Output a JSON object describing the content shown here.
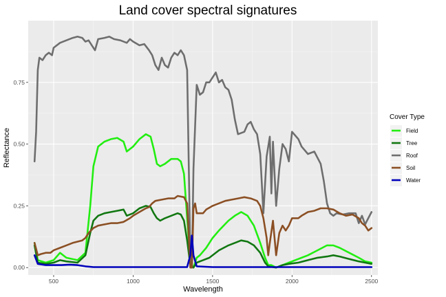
{
  "chart_data": {
    "type": "line",
    "title": "Land cover spectral signatures",
    "xlabel": "Wavelength",
    "ylabel": "Reflectance",
    "xlim": [
      340,
      2540
    ],
    "ylim": [
      -0.03,
      1.0
    ],
    "x_ticks": [
      500,
      1000,
      1500,
      2000,
      2500
    ],
    "x_tick_labels": [
      "500",
      "1000",
      "1500",
      "2000",
      "2500"
    ],
    "y_ticks": [
      0.0,
      0.25,
      0.5,
      0.75
    ],
    "y_tick_labels": [
      "0.00",
      "0.25",
      "0.50",
      "0.75"
    ],
    "grid": true,
    "legend": {
      "title": "Cover Type",
      "position": "right"
    },
    "series": [
      {
        "name": "Field",
        "color": "#22ee11",
        "points": [
          [
            380,
            0.1
          ],
          [
            400,
            0.03
          ],
          [
            450,
            0.02
          ],
          [
            500,
            0.03
          ],
          [
            540,
            0.06
          ],
          [
            580,
            0.04
          ],
          [
            650,
            0.03
          ],
          [
            700,
            0.06
          ],
          [
            730,
            0.25
          ],
          [
            750,
            0.41
          ],
          [
            780,
            0.49
          ],
          [
            820,
            0.51
          ],
          [
            860,
            0.52
          ],
          [
            900,
            0.525
          ],
          [
            940,
            0.51
          ],
          [
            960,
            0.47
          ],
          [
            1000,
            0.49
          ],
          [
            1040,
            0.52
          ],
          [
            1080,
            0.54
          ],
          [
            1110,
            0.53
          ],
          [
            1130,
            0.48
          ],
          [
            1150,
            0.42
          ],
          [
            1170,
            0.41
          ],
          [
            1200,
            0.42
          ],
          [
            1240,
            0.44
          ],
          [
            1280,
            0.44
          ],
          [
            1300,
            0.43
          ],
          [
            1320,
            0.38
          ],
          [
            1340,
            0.2
          ],
          [
            1360,
            0.02
          ],
          [
            1380,
            0.0
          ],
          [
            1400,
            0.04
          ],
          [
            1420,
            0.05
          ],
          [
            1460,
            0.08
          ],
          [
            1500,
            0.12
          ],
          [
            1540,
            0.15
          ],
          [
            1600,
            0.19
          ],
          [
            1640,
            0.21
          ],
          [
            1680,
            0.225
          ],
          [
            1720,
            0.21
          ],
          [
            1760,
            0.17
          ],
          [
            1800,
            0.1
          ],
          [
            1830,
            0.04
          ],
          [
            1850,
            0.01
          ],
          [
            1870,
            0.01
          ],
          [
            1900,
            0.0
          ],
          [
            1940,
            0.01
          ],
          [
            1980,
            0.02
          ],
          [
            2020,
            0.03
          ],
          [
            2060,
            0.04
          ],
          [
            2100,
            0.05
          ],
          [
            2160,
            0.07
          ],
          [
            2220,
            0.09
          ],
          [
            2260,
            0.09
          ],
          [
            2300,
            0.08
          ],
          [
            2360,
            0.06
          ],
          [
            2420,
            0.04
          ],
          [
            2460,
            0.025
          ],
          [
            2500,
            0.02
          ]
        ]
      },
      {
        "name": "Tree",
        "color": "#117711",
        "points": [
          [
            380,
            0.09
          ],
          [
            400,
            0.02
          ],
          [
            450,
            0.015
          ],
          [
            500,
            0.02
          ],
          [
            540,
            0.03
          ],
          [
            580,
            0.025
          ],
          [
            650,
            0.02
          ],
          [
            700,
            0.05
          ],
          [
            730,
            0.14
          ],
          [
            750,
            0.19
          ],
          [
            780,
            0.21
          ],
          [
            820,
            0.22
          ],
          [
            860,
            0.225
          ],
          [
            900,
            0.23
          ],
          [
            940,
            0.235
          ],
          [
            960,
            0.21
          ],
          [
            1000,
            0.22
          ],
          [
            1040,
            0.24
          ],
          [
            1080,
            0.25
          ],
          [
            1110,
            0.245
          ],
          [
            1130,
            0.22
          ],
          [
            1150,
            0.2
          ],
          [
            1170,
            0.19
          ],
          [
            1200,
            0.2
          ],
          [
            1240,
            0.21
          ],
          [
            1280,
            0.22
          ],
          [
            1300,
            0.215
          ],
          [
            1320,
            0.19
          ],
          [
            1340,
            0.11
          ],
          [
            1360,
            0.01
          ],
          [
            1380,
            0.0
          ],
          [
            1400,
            0.02
          ],
          [
            1440,
            0.03
          ],
          [
            1480,
            0.04
          ],
          [
            1540,
            0.07
          ],
          [
            1600,
            0.09
          ],
          [
            1640,
            0.1
          ],
          [
            1680,
            0.11
          ],
          [
            1720,
            0.105
          ],
          [
            1760,
            0.09
          ],
          [
            1800,
            0.06
          ],
          [
            1830,
            0.02
          ],
          [
            1850,
            0.005
          ],
          [
            1900,
            0.0
          ],
          [
            1940,
            0.01
          ],
          [
            1980,
            0.015
          ],
          [
            2040,
            0.02
          ],
          [
            2100,
            0.03
          ],
          [
            2160,
            0.04
          ],
          [
            2220,
            0.045
          ],
          [
            2260,
            0.05
          ],
          [
            2300,
            0.045
          ],
          [
            2360,
            0.035
          ],
          [
            2420,
            0.025
          ],
          [
            2460,
            0.02
          ],
          [
            2500,
            0.015
          ]
        ]
      },
      {
        "name": "Roof",
        "color": "#6e6e6e",
        "points": [
          [
            380,
            0.43
          ],
          [
            390,
            0.55
          ],
          [
            400,
            0.8
          ],
          [
            410,
            0.85
          ],
          [
            430,
            0.84
          ],
          [
            450,
            0.86
          ],
          [
            470,
            0.87
          ],
          [
            490,
            0.86
          ],
          [
            500,
            0.89
          ],
          [
            540,
            0.91
          ],
          [
            580,
            0.92
          ],
          [
            620,
            0.93
          ],
          [
            650,
            0.935
          ],
          [
            680,
            0.93
          ],
          [
            700,
            0.915
          ],
          [
            720,
            0.92
          ],
          [
            740,
            0.9
          ],
          [
            760,
            0.88
          ],
          [
            780,
            0.925
          ],
          [
            820,
            0.93
          ],
          [
            850,
            0.935
          ],
          [
            880,
            0.925
          ],
          [
            920,
            0.92
          ],
          [
            960,
            0.91
          ],
          [
            980,
            0.925
          ],
          [
            1000,
            0.915
          ],
          [
            1040,
            0.9
          ],
          [
            1070,
            0.905
          ],
          [
            1100,
            0.88
          ],
          [
            1120,
            0.86
          ],
          [
            1140,
            0.82
          ],
          [
            1160,
            0.8
          ],
          [
            1180,
            0.85
          ],
          [
            1200,
            0.82
          ],
          [
            1220,
            0.81
          ],
          [
            1240,
            0.85
          ],
          [
            1260,
            0.87
          ],
          [
            1280,
            0.86
          ],
          [
            1300,
            0.88
          ],
          [
            1320,
            0.86
          ],
          [
            1340,
            0.8
          ],
          [
            1360,
            0.05
          ],
          [
            1370,
            0.0
          ],
          [
            1380,
            0.4
          ],
          [
            1400,
            0.74
          ],
          [
            1420,
            0.7
          ],
          [
            1440,
            0.71
          ],
          [
            1460,
            0.75
          ],
          [
            1480,
            0.75
          ],
          [
            1500,
            0.77
          ],
          [
            1520,
            0.79
          ],
          [
            1540,
            0.75
          ],
          [
            1560,
            0.76
          ],
          [
            1580,
            0.73
          ],
          [
            1600,
            0.72
          ],
          [
            1620,
            0.68
          ],
          [
            1640,
            0.6
          ],
          [
            1660,
            0.54
          ],
          [
            1700,
            0.55
          ],
          [
            1720,
            0.58
          ],
          [
            1740,
            0.59
          ],
          [
            1760,
            0.56
          ],
          [
            1780,
            0.54
          ],
          [
            1800,
            0.46
          ],
          [
            1820,
            0.22
          ],
          [
            1840,
            0.45
          ],
          [
            1860,
            0.53
          ],
          [
            1870,
            0.3
          ],
          [
            1880,
            0.51
          ],
          [
            1900,
            0.25
          ],
          [
            1920,
            0.4
          ],
          [
            1940,
            0.5
          ],
          [
            1960,
            0.48
          ],
          [
            1980,
            0.43
          ],
          [
            2000,
            0.55
          ],
          [
            2040,
            0.52
          ],
          [
            2060,
            0.49
          ],
          [
            2100,
            0.46
          ],
          [
            2140,
            0.47
          ],
          [
            2180,
            0.42
          ],
          [
            2200,
            0.35
          ],
          [
            2220,
            0.26
          ],
          [
            2240,
            0.22
          ],
          [
            2260,
            0.21
          ],
          [
            2280,
            0.22
          ],
          [
            2320,
            0.215
          ],
          [
            2360,
            0.22
          ],
          [
            2400,
            0.22
          ],
          [
            2420,
            0.18
          ],
          [
            2440,
            0.21
          ],
          [
            2460,
            0.175
          ],
          [
            2480,
            0.2
          ],
          [
            2500,
            0.225
          ]
        ]
      },
      {
        "name": "Soil",
        "color": "#8b4f23",
        "points": [
          [
            380,
            0.1
          ],
          [
            400,
            0.05
          ],
          [
            420,
            0.055
          ],
          [
            450,
            0.06
          ],
          [
            480,
            0.06
          ],
          [
            500,
            0.07
          ],
          [
            540,
            0.08
          ],
          [
            580,
            0.09
          ],
          [
            620,
            0.1
          ],
          [
            650,
            0.105
          ],
          [
            680,
            0.11
          ],
          [
            700,
            0.12
          ],
          [
            720,
            0.14
          ],
          [
            750,
            0.16
          ],
          [
            780,
            0.17
          ],
          [
            820,
            0.175
          ],
          [
            860,
            0.18
          ],
          [
            900,
            0.18
          ],
          [
            940,
            0.185
          ],
          [
            980,
            0.2
          ],
          [
            1000,
            0.21
          ],
          [
            1040,
            0.225
          ],
          [
            1080,
            0.24
          ],
          [
            1100,
            0.245
          ],
          [
            1120,
            0.26
          ],
          [
            1140,
            0.27
          ],
          [
            1180,
            0.275
          ],
          [
            1220,
            0.28
          ],
          [
            1260,
            0.28
          ],
          [
            1280,
            0.29
          ],
          [
            1320,
            0.285
          ],
          [
            1340,
            0.26
          ],
          [
            1360,
            0.0
          ],
          [
            1370,
            0.0
          ],
          [
            1380,
            0.24
          ],
          [
            1390,
            0.26
          ],
          [
            1400,
            0.22
          ],
          [
            1440,
            0.22
          ],
          [
            1460,
            0.235
          ],
          [
            1500,
            0.25
          ],
          [
            1540,
            0.26
          ],
          [
            1580,
            0.27
          ],
          [
            1620,
            0.275
          ],
          [
            1660,
            0.28
          ],
          [
            1700,
            0.285
          ],
          [
            1740,
            0.28
          ],
          [
            1780,
            0.27
          ],
          [
            1800,
            0.25
          ],
          [
            1820,
            0.2
          ],
          [
            1840,
            0.12
          ],
          [
            1850,
            0.05
          ],
          [
            1860,
            0.1
          ],
          [
            1880,
            0.19
          ],
          [
            1900,
            0.05
          ],
          [
            1920,
            0.14
          ],
          [
            1940,
            0.17
          ],
          [
            1960,
            0.15
          ],
          [
            1980,
            0.17
          ],
          [
            2000,
            0.2
          ],
          [
            2040,
            0.2
          ],
          [
            2060,
            0.21
          ],
          [
            2100,
            0.225
          ],
          [
            2140,
            0.23
          ],
          [
            2180,
            0.24
          ],
          [
            2220,
            0.24
          ],
          [
            2260,
            0.235
          ],
          [
            2300,
            0.22
          ],
          [
            2340,
            0.21
          ],
          [
            2380,
            0.215
          ],
          [
            2420,
            0.2
          ],
          [
            2440,
            0.18
          ],
          [
            2460,
            0.17
          ],
          [
            2480,
            0.15
          ],
          [
            2500,
            0.16
          ]
        ]
      },
      {
        "name": "Water",
        "color": "#0000bb",
        "points": [
          [
            380,
            0.05
          ],
          [
            400,
            0.015
          ],
          [
            450,
            0.01
          ],
          [
            500,
            0.01
          ],
          [
            550,
            0.01
          ],
          [
            600,
            0.012
          ],
          [
            650,
            0.01
          ],
          [
            700,
            0.005
          ],
          [
            750,
            0.002
          ],
          [
            800,
            0.002
          ],
          [
            900,
            0.002
          ],
          [
            1000,
            0.002
          ],
          [
            1100,
            0.002
          ],
          [
            1200,
            0.002
          ],
          [
            1300,
            0.002
          ],
          [
            1340,
            0.002
          ],
          [
            1360,
            0.05
          ],
          [
            1370,
            0.13
          ],
          [
            1380,
            0.05
          ],
          [
            1400,
            0.005
          ],
          [
            1500,
            0.002
          ],
          [
            1600,
            0.002
          ],
          [
            1700,
            0.002
          ],
          [
            1800,
            0.002
          ],
          [
            1900,
            0.002
          ],
          [
            2000,
            0.002
          ],
          [
            2100,
            0.002
          ],
          [
            2200,
            0.002
          ],
          [
            2300,
            0.002
          ],
          [
            2400,
            0.002
          ],
          [
            2500,
            0.002
          ]
        ]
      }
    ]
  }
}
